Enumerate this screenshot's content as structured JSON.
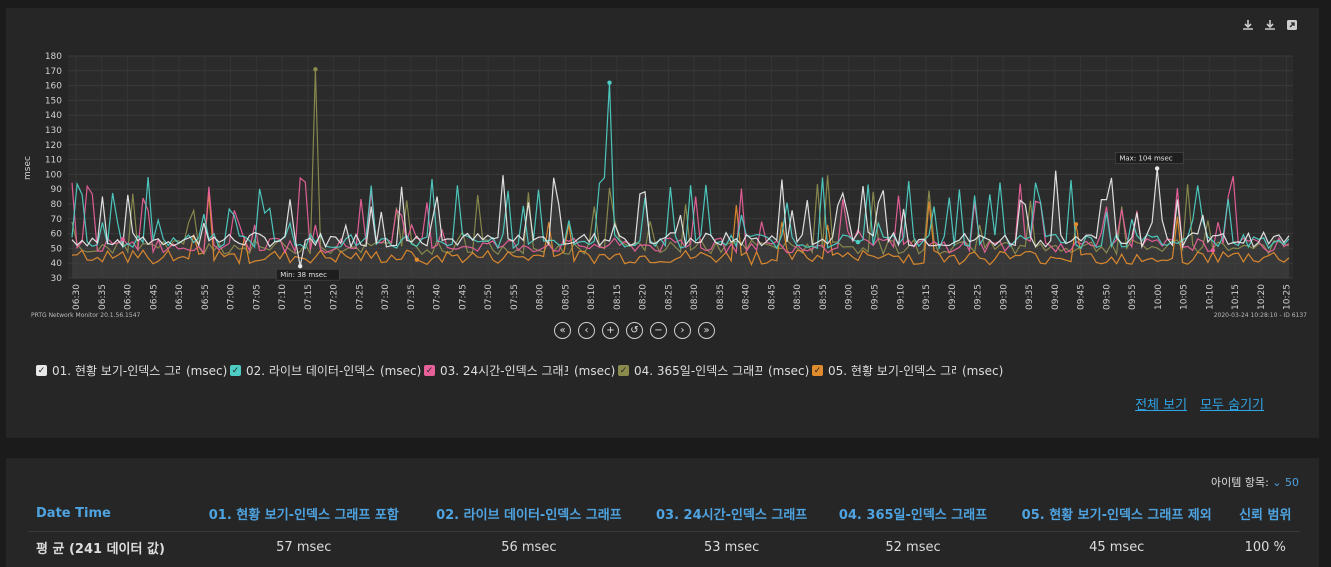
{
  "toolbar": {
    "icons": [
      "download-icon",
      "download-icon",
      "expand-icon"
    ]
  },
  "chart_data": {
    "type": "line",
    "ylabel": "msec",
    "ylim": [
      30,
      180
    ],
    "yticks": [
      "180",
      "170",
      "160",
      "150",
      "140",
      "130",
      "120",
      "110",
      "100",
      "90",
      "80",
      "70",
      "60",
      "50",
      "40",
      "30"
    ],
    "xticks": [
      "06:30",
      "06:35",
      "06:40",
      "06:45",
      "06:50",
      "06:55",
      "07:00",
      "07:05",
      "07:10",
      "07:15",
      "07:20",
      "07:25",
      "07:30",
      "07:35",
      "07:40",
      "07:45",
      "07:50",
      "07:55",
      "08:00",
      "08:05",
      "08:10",
      "08:15",
      "08:20",
      "08:25",
      "08:30",
      "08:35",
      "08:40",
      "08:45",
      "08:50",
      "08:55",
      "09:00",
      "09:05",
      "09:10",
      "09:15",
      "09:20",
      "09:25",
      "09:30",
      "09:35",
      "09:40",
      "09:45",
      "09:50",
      "09:55",
      "10:00",
      "10:05",
      "10:10",
      "10:15",
      "10:20",
      "10:25"
    ],
    "series": [
      {
        "name": "01. 현황 보기-인덱스 그래프 포함",
        "color": "#e8e8e8"
      },
      {
        "name": "02. 라이브 데이터-인덱스 그래프",
        "color": "#4ecdc4"
      },
      {
        "name": "03. 24시간-인덱스 그래프",
        "color": "#e8609a"
      },
      {
        "name": "04. 365일-인덱스 그래프",
        "color": "#8b8b4e"
      },
      {
        "name": "05. 현황 보기-인덱스 그래프 제외",
        "color": "#e08b2e"
      }
    ],
    "annotations": [
      {
        "text": "Max: 104 msec",
        "x": "09:50",
        "y": 104
      },
      {
        "text": "Min: 38 msec",
        "x": "07:25",
        "y": 38
      }
    ],
    "grid": true
  },
  "footer": {
    "left": "PRTG Network Monitor 20.1.56.1547",
    "right": "2020-03-24 10:28:10 - ID 6137"
  },
  "nav": [
    "«",
    "‹",
    "+",
    "↺",
    "−",
    "›",
    "»"
  ],
  "legend": [
    {
      "label": "01. 현황 보기-인덱스 그래...",
      "unit": "(msec)",
      "color": "#e8e8e8"
    },
    {
      "label": "02. 라이브 데이터-인덱스 ...",
      "unit": "(msec)",
      "color": "#4ecdc4"
    },
    {
      "label": "03. 24시간-인덱스 그래프",
      "unit": "(msec)",
      "color": "#e8609a"
    },
    {
      "label": "04. 365일-인덱스 그래프",
      "unit": "(msec)",
      "color": "#8b8b4e"
    },
    {
      "label": "05. 현황 보기-인덱스 그래...",
      "unit": "(msec)",
      "color": "#e08b2e"
    }
  ],
  "links": {
    "show_all": "전체 보기",
    "hide_all": "모두 숨기기"
  },
  "table": {
    "items_label": "아이템 항목:",
    "items_value": "50",
    "headers": [
      "Date Time",
      "01. 현황 보기-인덱스 그래프 포함",
      "02. 라이브 데이터-인덱스 그래프",
      "03. 24시간-인덱스 그래프",
      "04. 365일-인덱스 그래프",
      "05. 현황 보기-인덱스 그래프 제외",
      "신뢰 범위"
    ],
    "rows": [
      [
        "평 균 (241 데이터 값)",
        "57 msec",
        "56 msec",
        "53 msec",
        "52 msec",
        "45 msec",
        "100 %"
      ]
    ]
  }
}
